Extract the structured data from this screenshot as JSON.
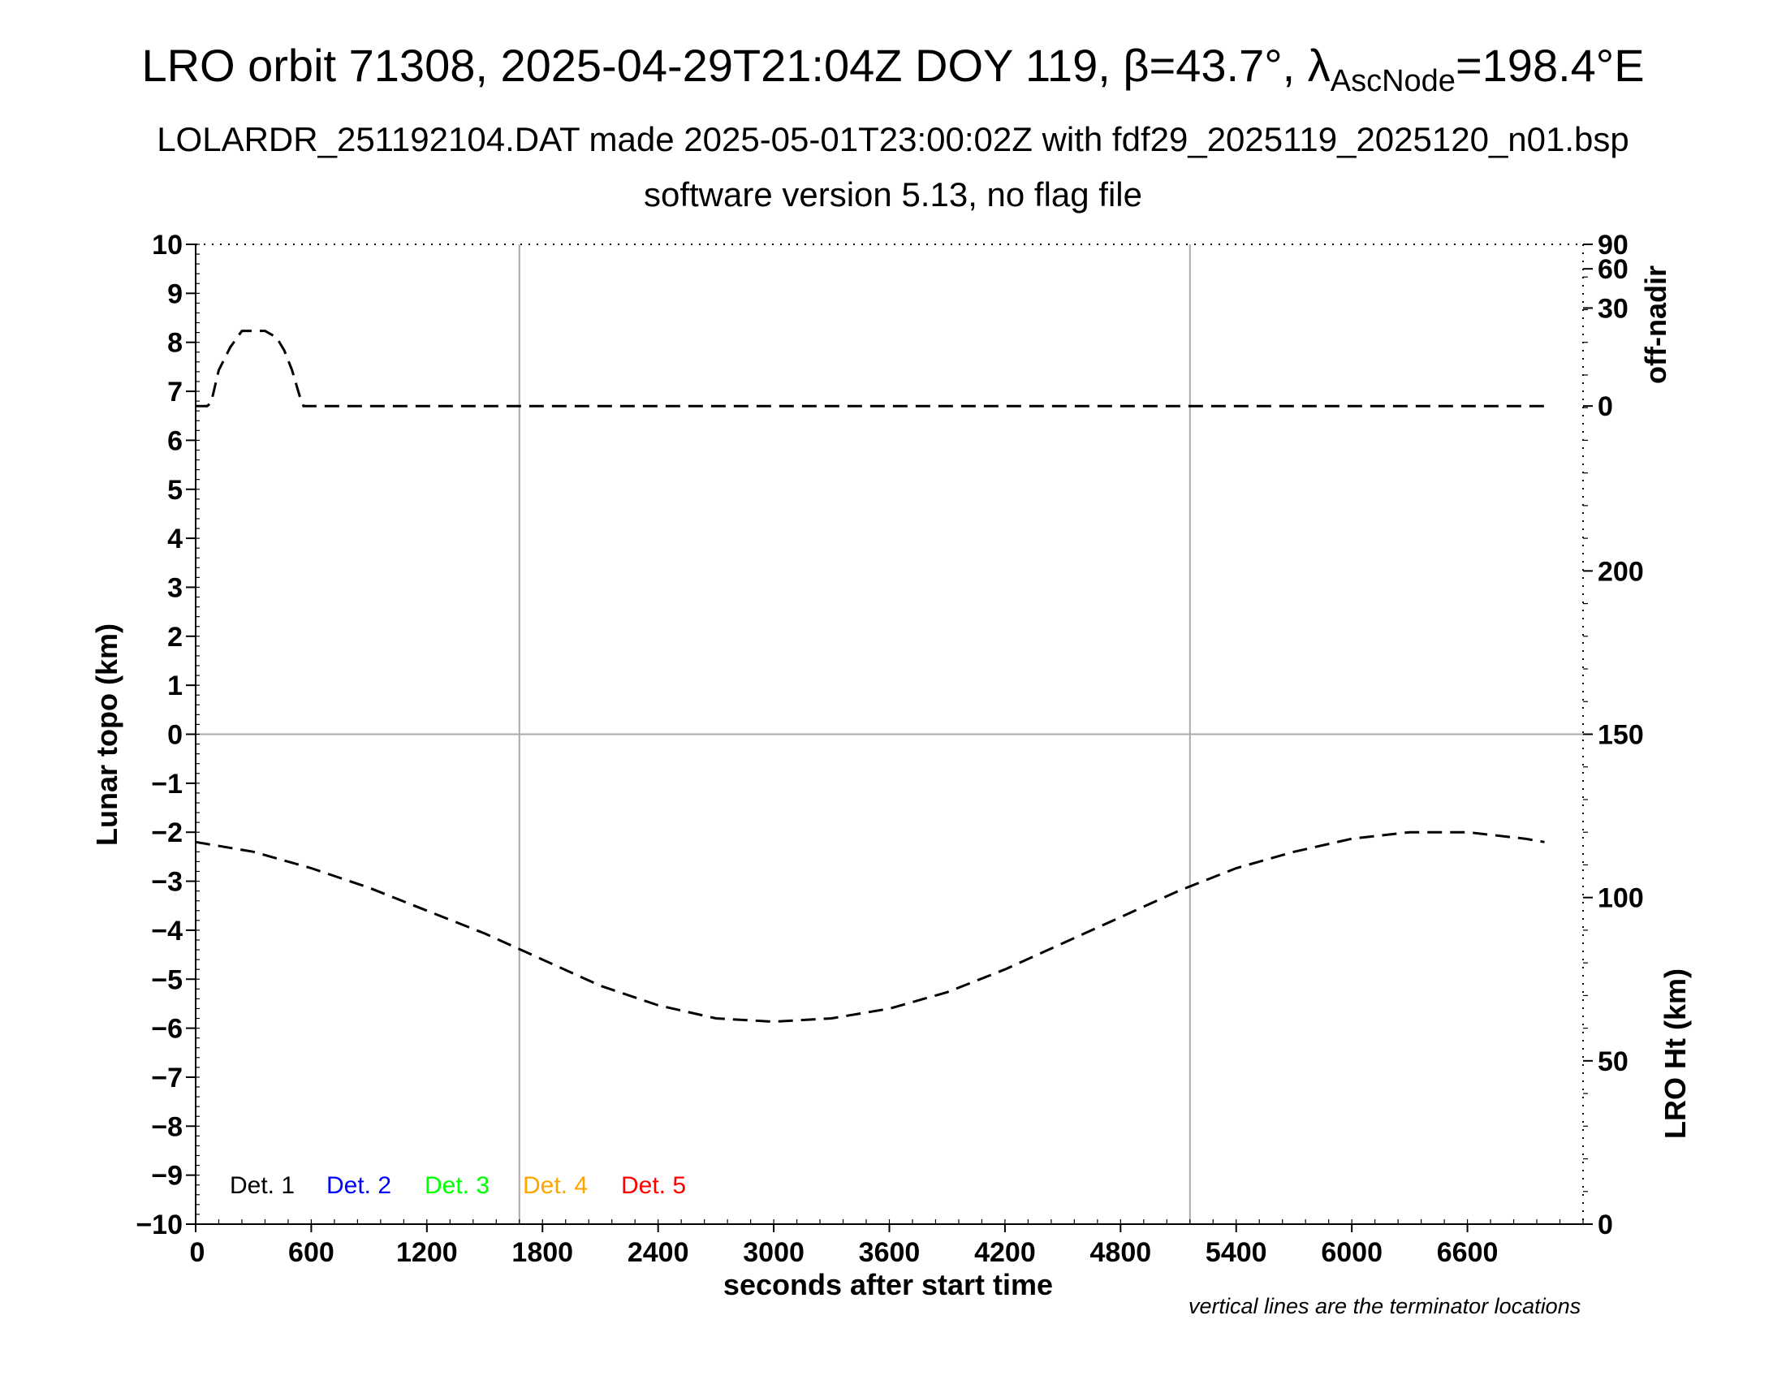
{
  "title": {
    "line1_prefix": "LRO orbit 71308, 2025-04-29T21:04Z DOY 119, β=43.7°, λ",
    "line1_sub": "AscNode",
    "line1_suffix": "=198.4°E",
    "line2": "LOLARDR_251192104.DAT made 2025-05-01T23:00:02Z with fdf29_2025119_2025120_n01.bsp",
    "line3": "software version 5.13, no flag file"
  },
  "note": "vertical lines are the terminator locations",
  "chart_data": {
    "type": "line",
    "xlabel": "seconds after start time",
    "ylabel": "Lunar topo (km)",
    "xlim": [
      0,
      7200
    ],
    "ylim": [
      -10,
      10
    ],
    "x_ticks": [
      0,
      600,
      1200,
      1800,
      2400,
      3000,
      3600,
      4200,
      4800,
      5400,
      6000,
      6600
    ],
    "y_ticks": [
      10,
      9,
      8,
      7,
      6,
      5,
      4,
      3,
      2,
      1,
      0,
      -1,
      -2,
      -3,
      -4,
      -5,
      -6,
      -7,
      -8,
      -9,
      -10
    ],
    "right_axis_offnadir": {
      "label": "off-nadir",
      "ticks": [
        "90",
        "60",
        "30",
        "0"
      ],
      "ticks_topo_km": [
        10,
        9.5,
        8.7,
        6.7
      ]
    },
    "right_axis_height": {
      "label": "LRO Ht (km)",
      "ticks": [
        0,
        50,
        100,
        150,
        200
      ],
      "range_km": [
        0,
        300
      ]
    },
    "terminator_lines_x": [
      1680,
      5160
    ],
    "zero_line_y": 0,
    "legend": [
      {
        "label": "Det. 1",
        "color": "#000000"
      },
      {
        "label": "Det. 2",
        "color": "#0000ff"
      },
      {
        "label": "Det. 3",
        "color": "#00ff00"
      },
      {
        "label": "Det. 4",
        "color": "#ffa500"
      },
      {
        "label": "Det. 5",
        "color": "#ff0000"
      }
    ],
    "series": [
      {
        "axis": "off-nadir",
        "style": "dashed",
        "color": "#000000",
        "x": [
          0,
          60,
          80,
          120,
          180,
          240,
          300,
          360,
          420,
          460,
          500,
          540,
          560,
          1200,
          1800,
          2400,
          3000,
          3600,
          4200,
          4800,
          5400,
          6000,
          6600,
          7000
        ],
        "y_deg": [
          0,
          0,
          1,
          11,
          18,
          23,
          23,
          23,
          21,
          17,
          11,
          3,
          0,
          0,
          0,
          0,
          0,
          0,
          0,
          0,
          0,
          0,
          0,
          0
        ]
      },
      {
        "axis": "height",
        "style": "dashed",
        "color": "#000000",
        "x": [
          0,
          300,
          600,
          900,
          1200,
          1500,
          1800,
          2100,
          2400,
          2700,
          3000,
          3300,
          3600,
          3900,
          4200,
          4500,
          4800,
          5100,
          5400,
          5700,
          6000,
          6300,
          6600,
          6900,
          7000
        ],
        "y_km": [
          117,
          114,
          109,
          103,
          96,
          89,
          81,
          73,
          67,
          63,
          62,
          63,
          66,
          71,
          78,
          86,
          94,
          102,
          109,
          114,
          118,
          120,
          120,
          118,
          117
        ]
      }
    ]
  }
}
